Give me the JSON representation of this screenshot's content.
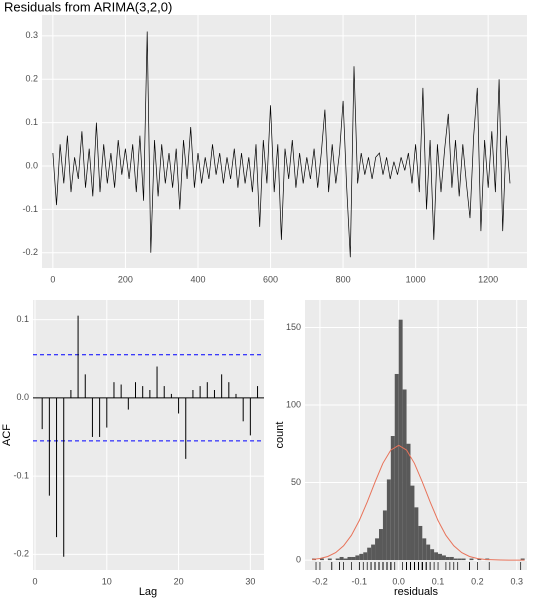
{
  "chart_data": [
    {
      "type": "line",
      "title": "Residuals from ARIMA(3,2,0)",
      "color": "#000000",
      "x": [
        0,
        10,
        20,
        30,
        40,
        50,
        60,
        70,
        80,
        90,
        100,
        110,
        120,
        130,
        140,
        150,
        160,
        170,
        180,
        190,
        200,
        210,
        220,
        230,
        240,
        250,
        260,
        270,
        280,
        290,
        300,
        310,
        320,
        330,
        340,
        350,
        360,
        370,
        380,
        390,
        400,
        410,
        420,
        430,
        440,
        450,
        460,
        470,
        480,
        490,
        500,
        510,
        520,
        530,
        540,
        550,
        560,
        570,
        580,
        590,
        600,
        610,
        620,
        630,
        640,
        650,
        660,
        670,
        680,
        690,
        700,
        710,
        720,
        730,
        740,
        750,
        760,
        770,
        780,
        790,
        800,
        810,
        820,
        830,
        840,
        850,
        860,
        870,
        880,
        890,
        900,
        910,
        920,
        930,
        940,
        950,
        960,
        970,
        980,
        990,
        1000,
        1010,
        1020,
        1030,
        1040,
        1050,
        1060,
        1070,
        1080,
        1090,
        1100,
        1110,
        1120,
        1130,
        1140,
        1150,
        1160,
        1170,
        1180,
        1190,
        1200,
        1210,
        1220,
        1230,
        1240,
        1250,
        1260
      ],
      "values": [
        0.03,
        -0.09,
        0.05,
        -0.04,
        0.07,
        -0.06,
        0.02,
        -0.03,
        0.08,
        -0.05,
        0.04,
        -0.07,
        0.1,
        -0.06,
        0.05,
        -0.04,
        0.03,
        -0.05,
        0.06,
        -0.02,
        0.04,
        -0.03,
        0.05,
        -0.06,
        0.07,
        -0.08,
        0.31,
        -0.2,
        0.06,
        -0.07,
        0.05,
        -0.04,
        0.03,
        -0.05,
        0.04,
        -0.1,
        0.06,
        -0.03,
        0.09,
        -0.05,
        0.03,
        -0.04,
        0.02,
        -0.03,
        0.05,
        -0.02,
        0.03,
        -0.04,
        0.02,
        -0.03,
        0.04,
        -0.05,
        0.03,
        -0.04,
        0.02,
        -0.06,
        0.05,
        -0.14,
        0.06,
        -0.04,
        0.14,
        -0.06,
        0.05,
        -0.17,
        0.04,
        -0.03,
        0.06,
        -0.05,
        0.03,
        -0.04,
        0.02,
        -0.03,
        0.04,
        -0.05,
        0.03,
        0.13,
        -0.06,
        0.05,
        -0.04,
        0.03,
        0.15,
        -0.05,
        -0.21,
        0.23,
        -0.04,
        0.03,
        -0.02,
        0.02,
        -0.03,
        0.02,
        0.03,
        -0.02,
        0.02,
        -0.03,
        0.01,
        -0.02,
        0.02,
        -0.01,
        0.03,
        -0.04,
        0.05,
        -0.06,
        0.18,
        -0.1,
        0.06,
        -0.17,
        0.05,
        -0.06,
        0.04,
        0.12,
        -0.05,
        0.06,
        -0.07,
        0.05,
        -0.04,
        -0.12,
        0.07,
        0.18,
        -0.15,
        0.06,
        -0.05,
        0.08,
        -0.06,
        0.2,
        -0.15,
        0.07,
        -0.04
      ],
      "xlim": [
        -30,
        1307
      ],
      "xticks": [
        0,
        200,
        400,
        600,
        800,
        1000,
        1200
      ],
      "ylim": [
        -0.235,
        0.348
      ],
      "yticks": [
        {
          "value": -0.2,
          "label": "-0.2"
        },
        {
          "value": -0.1,
          "label": "-0.1"
        },
        {
          "value": 0,
          "label": "0.0"
        },
        0.1,
        0.2,
        0.3
      ],
      "grid": true
    },
    {
      "type": "acf",
      "x_label": "Lag",
      "y_label": "ACF",
      "color": "#000000",
      "x": [
        1,
        2,
        3,
        4,
        5,
        6,
        7,
        8,
        9,
        10,
        11,
        12,
        13,
        14,
        15,
        16,
        17,
        18,
        19,
        20,
        21,
        22,
        23,
        24,
        25,
        26,
        27,
        28,
        29,
        30,
        31
      ],
      "values": [
        -0.04,
        -0.125,
        -0.178,
        -0.203,
        0.01,
        0.105,
        0.03,
        -0.05,
        -0.05,
        -0.038,
        0.02,
        0.017,
        -0.015,
        0.02,
        0.015,
        0.01,
        0.04,
        0.015,
        0.005,
        -0.02,
        -0.078,
        0.01,
        0.015,
        0.02,
        0.01,
        0.03,
        0.02,
        0.005,
        -0.03,
        -0.048,
        0.015
      ],
      "ci_lines": [
        0.055,
        -0.055
      ],
      "ci_color": "#0000ff",
      "xlim": [
        -0.28,
        31.9
      ],
      "xticks": [
        0,
        10,
        20,
        30
      ],
      "ylim": [
        -0.22,
        0.125
      ],
      "yticks": [
        -0.2,
        -0.1,
        {
          "value": 0,
          "label": "0.0"
        },
        0.1
      ],
      "grid": true
    },
    {
      "type": "histogram",
      "x_label": "residuals",
      "y_label": "count",
      "color": "#595959",
      "bins": [
        -0.22,
        -0.21,
        -0.2,
        -0.19,
        -0.18,
        -0.17,
        -0.16,
        -0.15,
        -0.14,
        -0.13,
        -0.12,
        -0.11,
        -0.1,
        -0.09,
        -0.08,
        -0.07,
        -0.06,
        -0.05,
        -0.04,
        -0.03,
        -0.02,
        -0.01,
        0,
        0.01,
        0.02,
        0.03,
        0.04,
        0.05,
        0.06,
        0.07,
        0.08,
        0.09,
        0.1,
        0.11,
        0.12,
        0.13,
        0.14,
        0.15,
        0.16,
        0.17,
        0.18,
        0.19,
        0.2,
        0.21,
        0.22,
        0.23,
        0.24,
        0.25,
        0.26,
        0.27,
        0.28,
        0.29,
        0.3,
        0.31,
        0.32
      ],
      "values": [
        1,
        0,
        1,
        0,
        1,
        0,
        1,
        2,
        1,
        2,
        2,
        3,
        4,
        5,
        8,
        10,
        14,
        20,
        32,
        52,
        80,
        120,
        155,
        110,
        75,
        48,
        34,
        22,
        14,
        10,
        7,
        5,
        4,
        3,
        2,
        2,
        1,
        1,
        1,
        0,
        1,
        0,
        1,
        0,
        1,
        0,
        0,
        0,
        0,
        0,
        0,
        0,
        0,
        1
      ],
      "curve": {
        "color": "#e8735a",
        "x": [
          -0.22,
          -0.2,
          -0.18,
          -0.16,
          -0.14,
          -0.12,
          -0.1,
          -0.08,
          -0.06,
          -0.04,
          -0.02,
          0,
          0.02,
          0.04,
          0.06,
          0.08,
          0.1,
          0.12,
          0.14,
          0.16,
          0.18,
          0.2,
          0.22,
          0.24,
          0.26,
          0.28,
          0.3,
          0.32
        ],
        "values": [
          0.4,
          1.0,
          2.3,
          4.8,
          9.2,
          16.0,
          25.5,
          37.4,
          50.4,
          62.4,
          70.9,
          74,
          70.9,
          62.4,
          50.4,
          37.4,
          25.5,
          16.0,
          9.2,
          4.8,
          2.3,
          1.0,
          0.4,
          0.15,
          0.05,
          0.01,
          0,
          0
        ]
      },
      "xlim": [
        -0.238,
        0.326
      ],
      "xticks": [
        -0.2,
        -0.1,
        {
          "value": 0,
          "label": "0.0"
        },
        0.1,
        0.2,
        0.3
      ],
      "ylim": [
        -6.4,
        167.7
      ],
      "yticks": [
        0,
        50,
        100,
        150
      ],
      "grid": true
    }
  ]
}
